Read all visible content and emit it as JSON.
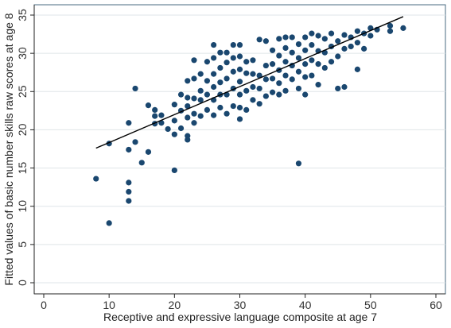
{
  "chart_data": {
    "type": "scatter",
    "title": "",
    "xlabel": "Receptive and expressive language composite at age 7",
    "ylabel": "Fitted values of basic number skills raw scores at age 8",
    "xlim": [
      0,
      60
    ],
    "ylim": [
      0,
      35
    ],
    "x_ticks": [
      0,
      10,
      20,
      30,
      40,
      50,
      60
    ],
    "y_ticks": [
      0,
      5,
      10,
      15,
      20,
      25,
      30,
      35
    ],
    "grid": "horizontal",
    "point_color": "#1a476f",
    "line_color": "#000000",
    "fit_line": {
      "x": [
        8,
        55
      ],
      "y": [
        17.6,
        34.8
      ]
    },
    "points": [
      [
        8,
        13.6
      ],
      [
        10,
        7.8
      ],
      [
        10,
        18.2
      ],
      [
        13,
        10.7
      ],
      [
        13,
        11.9
      ],
      [
        13,
        13.1
      ],
      [
        13,
        17.4
      ],
      [
        13,
        20.9
      ],
      [
        14,
        18.4
      ],
      [
        14,
        25.4
      ],
      [
        15,
        15.7
      ],
      [
        16,
        17.1
      ],
      [
        16,
        23.2
      ],
      [
        17,
        20.8
      ],
      [
        17,
        21.8
      ],
      [
        17,
        22.6
      ],
      [
        18,
        20.9
      ],
      [
        18,
        21.9
      ],
      [
        19,
        20.1
      ],
      [
        20,
        14.7
      ],
      [
        20,
        19.4
      ],
      [
        20,
        21.2
      ],
      [
        20,
        23.3
      ],
      [
        21,
        20.2
      ],
      [
        21,
        22.5
      ],
      [
        21,
        24.6
      ],
      [
        22,
        18.7
      ],
      [
        22,
        19.2
      ],
      [
        22,
        21.6
      ],
      [
        22,
        23.1
      ],
      [
        22,
        24.2
      ],
      [
        22,
        26.4
      ],
      [
        23,
        20.9
      ],
      [
        23,
        22.1
      ],
      [
        23,
        24.1
      ],
      [
        23,
        26.7
      ],
      [
        23,
        29.1
      ],
      [
        24,
        21.8
      ],
      [
        24,
        23.9
      ],
      [
        24,
        25.1
      ],
      [
        24,
        27.3
      ],
      [
        25,
        22.6
      ],
      [
        25,
        24.6
      ],
      [
        25,
        26.4
      ],
      [
        25,
        28.9
      ],
      [
        26,
        21.9
      ],
      [
        26,
        23.9
      ],
      [
        26,
        25.6
      ],
      [
        26,
        27.3
      ],
      [
        26,
        29.4
      ],
      [
        26,
        31.1
      ],
      [
        27,
        22.9
      ],
      [
        27,
        24.6
      ],
      [
        27,
        26.2
      ],
      [
        27,
        28.1
      ],
      [
        27,
        30.1
      ],
      [
        28,
        22.1
      ],
      [
        28,
        24.6
      ],
      [
        28,
        26.7
      ],
      [
        28,
        28.8
      ],
      [
        28,
        30.1
      ],
      [
        29,
        23.1
      ],
      [
        29,
        25.4
      ],
      [
        29,
        27.6
      ],
      [
        29,
        29.4
      ],
      [
        29,
        31.1
      ],
      [
        30,
        21.4
      ],
      [
        30,
        22.9
      ],
      [
        30,
        24.6
      ],
      [
        30,
        26.3
      ],
      [
        30,
        27.9
      ],
      [
        30,
        29.6
      ],
      [
        30,
        31.1
      ],
      [
        31,
        22.6
      ],
      [
        31,
        25.1
      ],
      [
        31,
        27.4
      ],
      [
        31,
        28.9
      ],
      [
        32,
        23.9
      ],
      [
        32,
        25.6
      ],
      [
        32,
        27.3
      ],
      [
        32,
        29.1
      ],
      [
        33,
        23.4
      ],
      [
        33,
        25.4
      ],
      [
        33,
        27.1
      ],
      [
        33,
        31.8
      ],
      [
        34,
        24.4
      ],
      [
        34,
        26.6
      ],
      [
        34,
        28.4
      ],
      [
        34,
        31.6
      ],
      [
        35,
        24.9
      ],
      [
        35,
        26.7
      ],
      [
        35,
        28.6
      ],
      [
        35,
        30.4
      ],
      [
        36,
        24.6
      ],
      [
        36,
        26.1
      ],
      [
        36,
        27.8
      ],
      [
        36,
        29.7
      ],
      [
        36,
        31.9
      ],
      [
        37,
        25.1
      ],
      [
        37,
        27.1
      ],
      [
        37,
        28.9
      ],
      [
        37,
        30.7
      ],
      [
        37,
        32.1
      ],
      [
        38,
        26.6
      ],
      [
        38,
        28.4
      ],
      [
        38,
        30.1
      ],
      [
        38,
        32.1
      ],
      [
        39,
        15.6
      ],
      [
        39,
        25.4
      ],
      [
        39,
        27.6
      ],
      [
        39,
        29.4
      ],
      [
        39,
        31.2
      ],
      [
        40,
        24.6
      ],
      [
        40,
        26.9
      ],
      [
        40,
        28.6
      ],
      [
        40,
        30.4
      ],
      [
        40,
        32.1
      ],
      [
        41,
        27.1
      ],
      [
        41,
        29.1
      ],
      [
        41,
        31.1
      ],
      [
        41,
        32.6
      ],
      [
        42,
        25.9
      ],
      [
        42,
        28.6
      ],
      [
        42,
        30.3
      ],
      [
        42,
        32.3
      ],
      [
        43,
        28.1
      ],
      [
        43,
        30.1
      ],
      [
        43,
        31.9
      ],
      [
        44,
        28.9
      ],
      [
        44,
        30.9
      ],
      [
        44,
        32.6
      ],
      [
        45,
        25.4
      ],
      [
        45,
        29.6
      ],
      [
        45,
        31.6
      ],
      [
        46,
        25.6
      ],
      [
        46,
        30.6
      ],
      [
        46,
        32.4
      ],
      [
        47,
        30.9
      ],
      [
        47,
        32.1
      ],
      [
        48,
        27.9
      ],
      [
        48,
        31.4
      ],
      [
        48,
        32.9
      ],
      [
        49,
        30.6
      ],
      [
        49,
        32.6
      ],
      [
        50,
        32.3
      ],
      [
        50,
        33.3
      ],
      [
        51,
        33.1
      ],
      [
        53,
        32.9
      ],
      [
        53,
        33.6
      ],
      [
        55,
        33.3
      ]
    ]
  }
}
